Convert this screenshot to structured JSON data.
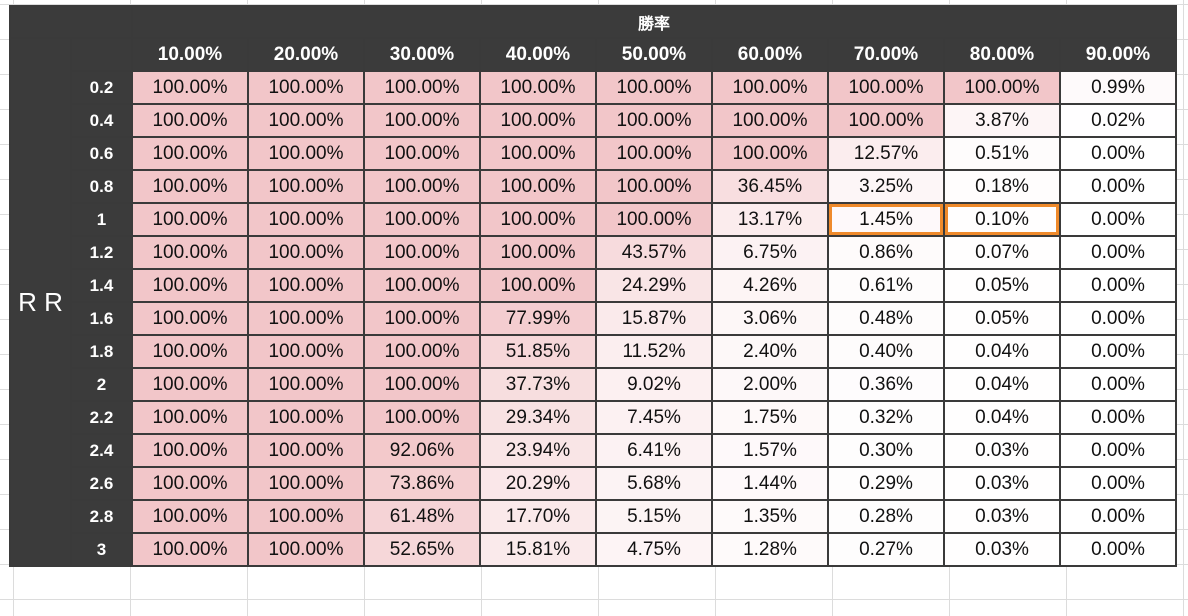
{
  "sheet": {
    "title": "勝率",
    "axis_label": "R R",
    "column_headers": [
      "10.00%",
      "20.00%",
      "30.00%",
      "40.00%",
      "50.00%",
      "60.00%",
      "70.00%",
      "80.00%",
      "90.00%"
    ],
    "row_headers": [
      "0.2",
      "0.4",
      "0.6",
      "0.8",
      "1",
      "1.2",
      "1.4",
      "1.6",
      "1.8",
      "2",
      "2.2",
      "2.4",
      "2.6",
      "2.8",
      "3"
    ],
    "rows": [
      [
        "100.00%",
        "100.00%",
        "100.00%",
        "100.00%",
        "100.00%",
        "100.00%",
        "100.00%",
        "100.00%",
        "0.99%"
      ],
      [
        "100.00%",
        "100.00%",
        "100.00%",
        "100.00%",
        "100.00%",
        "100.00%",
        "100.00%",
        "3.87%",
        "0.02%"
      ],
      [
        "100.00%",
        "100.00%",
        "100.00%",
        "100.00%",
        "100.00%",
        "100.00%",
        "12.57%",
        "0.51%",
        "0.00%"
      ],
      [
        "100.00%",
        "100.00%",
        "100.00%",
        "100.00%",
        "100.00%",
        "36.45%",
        "3.25%",
        "0.18%",
        "0.00%"
      ],
      [
        "100.00%",
        "100.00%",
        "100.00%",
        "100.00%",
        "100.00%",
        "13.17%",
        "1.45%",
        "0.10%",
        "0.00%"
      ],
      [
        "100.00%",
        "100.00%",
        "100.00%",
        "100.00%",
        "43.57%",
        "6.75%",
        "0.86%",
        "0.07%",
        "0.00%"
      ],
      [
        "100.00%",
        "100.00%",
        "100.00%",
        "100.00%",
        "24.29%",
        "4.26%",
        "0.61%",
        "0.05%",
        "0.00%"
      ],
      [
        "100.00%",
        "100.00%",
        "100.00%",
        "77.99%",
        "15.87%",
        "3.06%",
        "0.48%",
        "0.05%",
        "0.00%"
      ],
      [
        "100.00%",
        "100.00%",
        "100.00%",
        "51.85%",
        "11.52%",
        "2.40%",
        "0.40%",
        "0.04%",
        "0.00%"
      ],
      [
        "100.00%",
        "100.00%",
        "100.00%",
        "37.73%",
        "9.02%",
        "2.00%",
        "0.36%",
        "0.04%",
        "0.00%"
      ],
      [
        "100.00%",
        "100.00%",
        "100.00%",
        "29.34%",
        "7.45%",
        "1.75%",
        "0.32%",
        "0.04%",
        "0.00%"
      ],
      [
        "100.00%",
        "100.00%",
        "92.06%",
        "23.94%",
        "6.41%",
        "1.57%",
        "0.30%",
        "0.03%",
        "0.00%"
      ],
      [
        "100.00%",
        "100.00%",
        "73.86%",
        "20.29%",
        "5.68%",
        "1.44%",
        "0.29%",
        "0.03%",
        "0.00%"
      ],
      [
        "100.00%",
        "100.00%",
        "61.48%",
        "17.70%",
        "5.15%",
        "1.35%",
        "0.28%",
        "0.03%",
        "0.00%"
      ],
      [
        "100.00%",
        "100.00%",
        "52.65%",
        "15.81%",
        "4.75%",
        "1.28%",
        "0.27%",
        "0.03%",
        "0.00%"
      ]
    ],
    "highlighted_cells": [
      [
        4,
        6
      ],
      [
        4,
        7
      ]
    ]
  },
  "colors": {
    "header_bg": "#3b3b3b",
    "header_text": "#ffffff",
    "scale_max": "#f2c6c9",
    "scale_min": "#ffffff",
    "highlight_border": "#ef8a2b",
    "border": "#3a3a3a"
  }
}
